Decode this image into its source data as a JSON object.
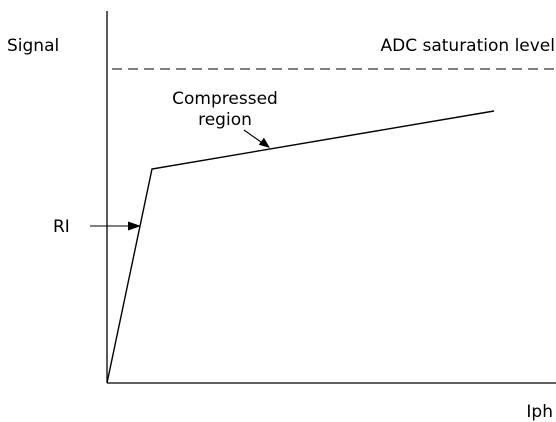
{
  "labels": {
    "y_axis": "Signal",
    "x_axis": "Iph",
    "saturation": "ADC saturation level",
    "compressed_line1": "Compressed",
    "compressed_line2": "region",
    "ri": "RI"
  }
}
